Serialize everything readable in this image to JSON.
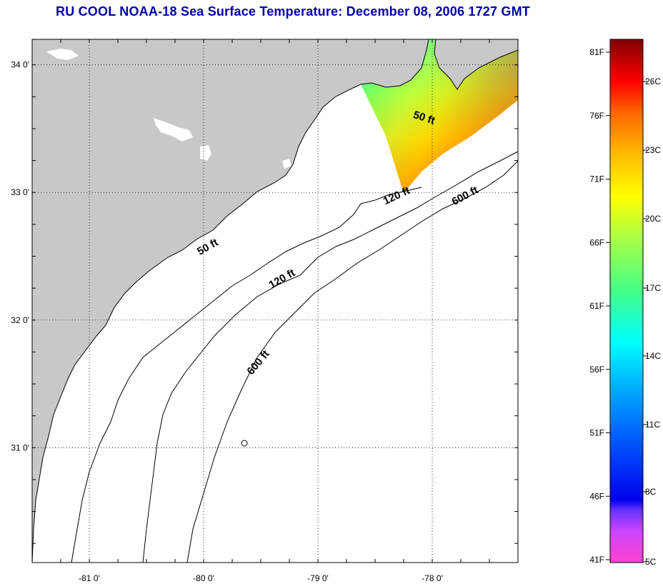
{
  "title": "RU COOL  NOAA-18  Sea Surface Temperature:  December 08, 2006 1727 GMT",
  "map": {
    "lon_range": [
      -81.5,
      -77.25
    ],
    "lat_range": [
      30.1,
      34.2
    ],
    "lat_ticks": [
      {
        "label": "34 0'",
        "value": 34.0
      },
      {
        "label": "33 0'",
        "value": 33.0
      },
      {
        "label": "32 0'",
        "value": 32.0
      },
      {
        "label": "31 0'",
        "value": 31.0
      }
    ],
    "lon_ticks": [
      {
        "label": "-81 0'",
        "value": -81.0
      },
      {
        "label": "-80 0'",
        "value": -80.0
      },
      {
        "label": "-79 0'",
        "value": -79.0
      },
      {
        "label": "-78 0'",
        "value": -78.0
      }
    ],
    "contour_labels": [
      {
        "text": "50 ft",
        "lon": -79.95,
        "lat": 32.55,
        "angle": -30
      },
      {
        "text": "120 ft",
        "lon": -79.3,
        "lat": 32.3,
        "angle": -30
      },
      {
        "text": "600 ft",
        "lon": -79.5,
        "lat": 31.65,
        "angle": -50
      },
      {
        "text": "50 ft",
        "lon": -78.08,
        "lat": 33.56,
        "angle": 18
      },
      {
        "text": "120 ft",
        "lon": -78.3,
        "lat": 32.95,
        "angle": -25
      },
      {
        "text": "600 ft",
        "lon": -77.7,
        "lat": 32.95,
        "angle": -28
      }
    ],
    "colors": {
      "land": "#c8c8c8",
      "water": "#ffffff",
      "grid": "#000000",
      "coast": "#000000"
    }
  },
  "colorbar": {
    "fahrenheit_labels": [
      "81F",
      "76F",
      "71F",
      "66F",
      "61F",
      "56F",
      "51F",
      "46F",
      "41F"
    ],
    "celsius_labels": [
      "26C",
      "23C",
      "20C",
      "17C",
      "14C",
      "11C",
      "8C",
      "5C"
    ],
    "gradient": [
      {
        "t": 0.0,
        "color": "#ff44cc"
      },
      {
        "t": 0.06,
        "color": "#cc44ff"
      },
      {
        "t": 0.1,
        "color": "#6633ff"
      },
      {
        "t": 0.12,
        "color": "#0000ee"
      },
      {
        "t": 0.25,
        "color": "#0066ff"
      },
      {
        "t": 0.35,
        "color": "#00bbff"
      },
      {
        "t": 0.42,
        "color": "#00ffff"
      },
      {
        "t": 0.52,
        "color": "#44ff88"
      },
      {
        "t": 0.62,
        "color": "#aaff44"
      },
      {
        "t": 0.7,
        "color": "#ffff00"
      },
      {
        "t": 0.78,
        "color": "#ffbb00"
      },
      {
        "t": 0.86,
        "color": "#ff6600"
      },
      {
        "t": 0.92,
        "color": "#ff0000"
      },
      {
        "t": 1.0,
        "color": "#800000"
      }
    ]
  }
}
